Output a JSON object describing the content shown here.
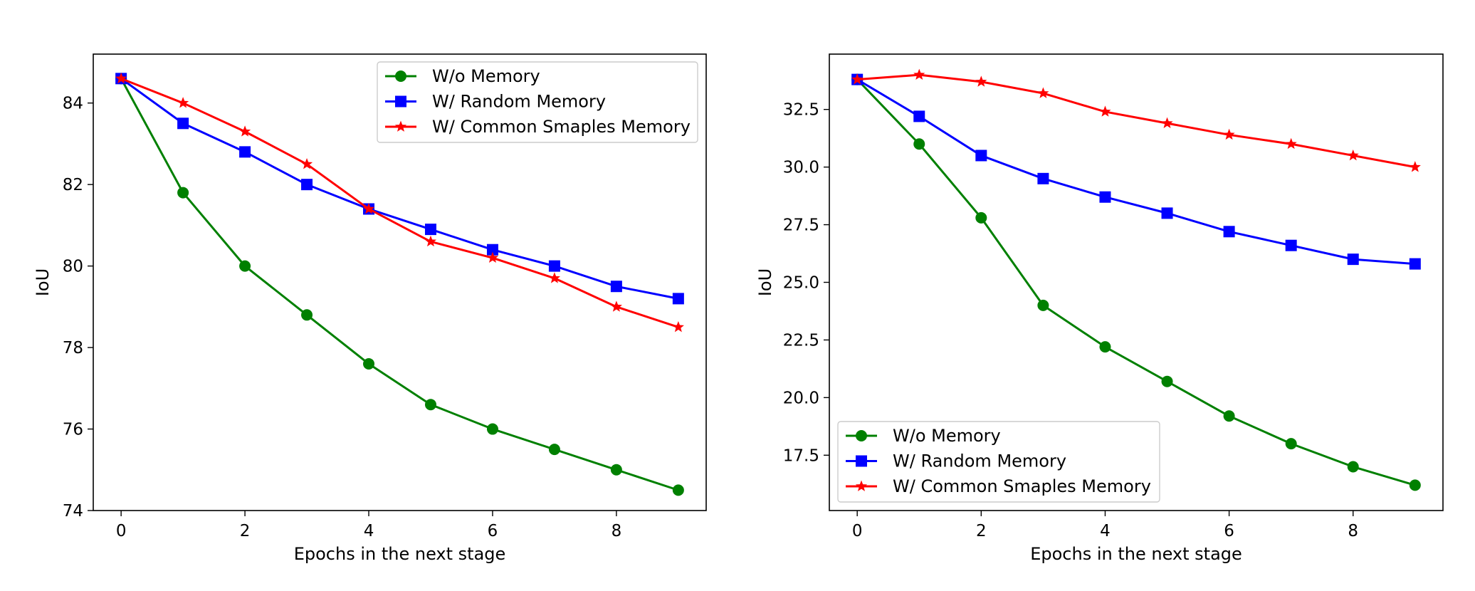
{
  "chart_data": [
    {
      "type": "line",
      "title": "",
      "xlabel": "Epochs in the next stage",
      "ylabel": "IoU",
      "xlim": [
        -0.45,
        9.45
      ],
      "ylim": [
        74,
        85.2
      ],
      "xticks": [
        0,
        2,
        4,
        6,
        8
      ],
      "yticks": [
        74,
        76,
        78,
        80,
        82,
        84
      ],
      "ytick_decimals": 0,
      "grid": false,
      "legend_position": "top-right",
      "x": [
        0,
        1,
        2,
        3,
        4,
        5,
        6,
        7,
        8,
        9
      ],
      "series": [
        {
          "name": "W/o Memory",
          "color": "#008000",
          "marker": "circle",
          "values": [
            84.6,
            81.8,
            80.0,
            78.8,
            77.6,
            76.6,
            76.0,
            75.5,
            75.0,
            74.5
          ]
        },
        {
          "name": "W/ Random Memory",
          "color": "#0000ff",
          "marker": "square",
          "values": [
            84.6,
            83.5,
            82.8,
            82.0,
            81.4,
            80.9,
            80.4,
            80.0,
            79.5,
            79.2
          ]
        },
        {
          "name": "W/ Common Smaples Memory",
          "color": "#ff0000",
          "marker": "star",
          "values": [
            84.6,
            84.0,
            83.3,
            82.5,
            81.4,
            80.6,
            80.2,
            79.7,
            79.0,
            78.5
          ]
        }
      ]
    },
    {
      "type": "line",
      "title": "",
      "xlabel": "Epochs in the next stage",
      "ylabel": "IoU",
      "xlim": [
        -0.45,
        9.45
      ],
      "ylim": [
        15.1,
        34.9
      ],
      "xticks": [
        0,
        2,
        4,
        6,
        8
      ],
      "yticks": [
        17.5,
        20.0,
        22.5,
        25.0,
        27.5,
        30.0,
        32.5
      ],
      "ytick_decimals": 1,
      "grid": false,
      "legend_position": "bottom-left",
      "x": [
        0,
        1,
        2,
        3,
        4,
        5,
        6,
        7,
        8,
        9
      ],
      "series": [
        {
          "name": "W/o Memory",
          "color": "#008000",
          "marker": "circle",
          "values": [
            33.8,
            31.0,
            27.8,
            24.0,
            22.2,
            20.7,
            19.2,
            18.0,
            17.0,
            16.2
          ]
        },
        {
          "name": "W/ Random Memory",
          "color": "#0000ff",
          "marker": "square",
          "values": [
            33.8,
            32.2,
            30.5,
            29.5,
            28.7,
            28.0,
            27.2,
            26.6,
            26.0,
            25.8
          ]
        },
        {
          "name": "W/ Common Smaples Memory",
          "color": "#ff0000",
          "marker": "star",
          "values": [
            33.8,
            34.0,
            33.7,
            33.2,
            32.4,
            31.9,
            31.4,
            31.0,
            30.5,
            30.0
          ]
        }
      ]
    }
  ]
}
